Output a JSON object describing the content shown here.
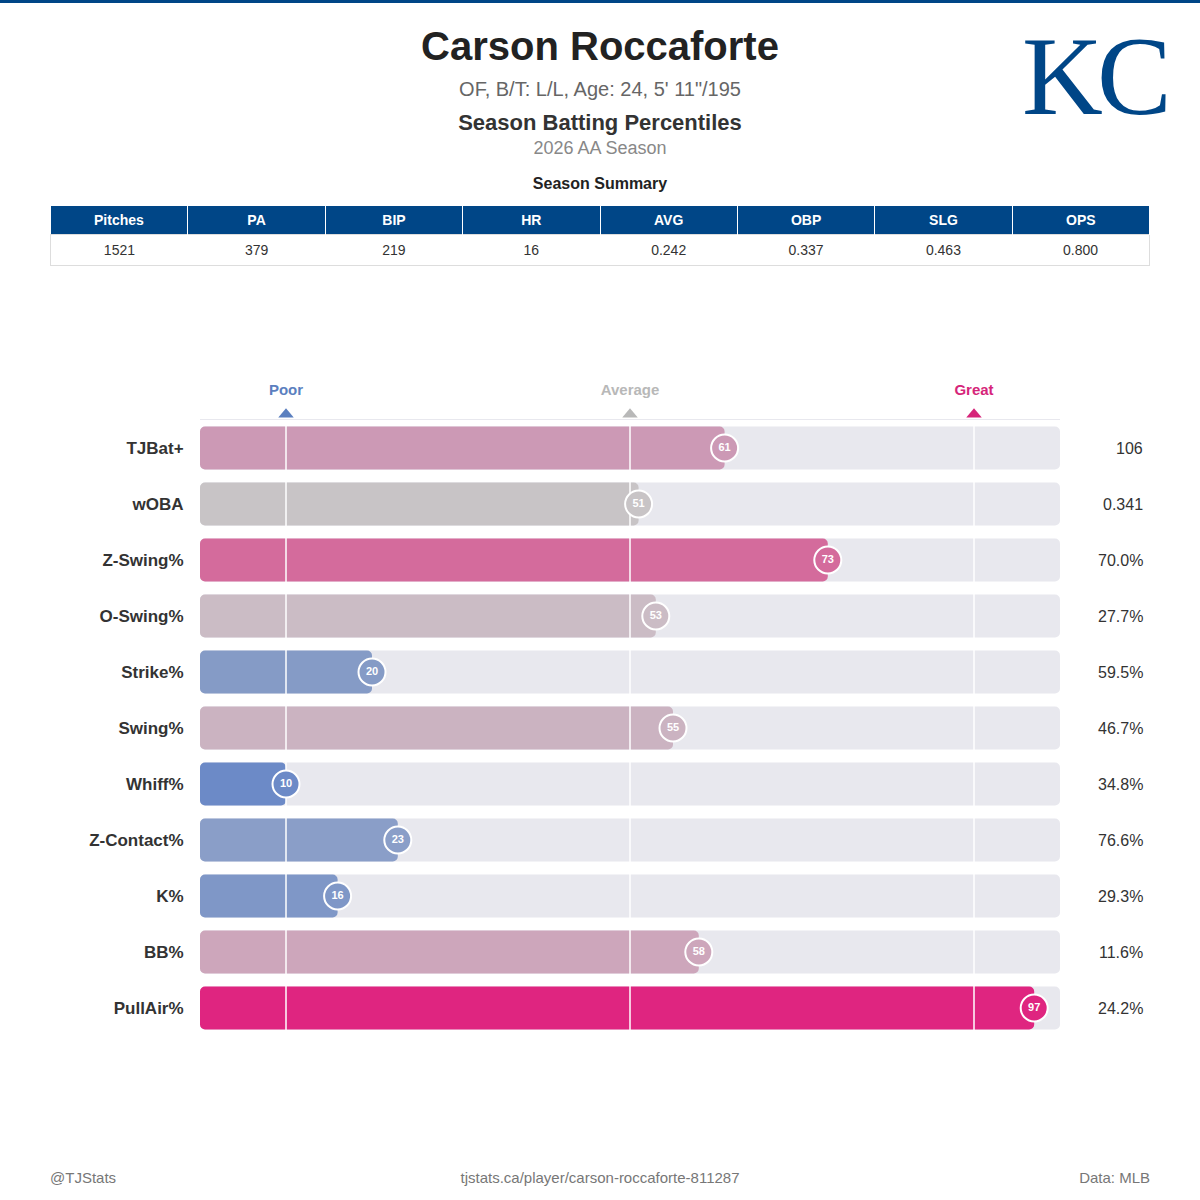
{
  "header": {
    "player": "Carson Roccaforte",
    "bio": "OF, B/T: L/L, Age: 24, 5' 11\"/195",
    "title": "Season Batting Percentiles",
    "season": "2026 AA Season",
    "team_logo": "KC"
  },
  "summary": {
    "title": "Season Summary",
    "columns": [
      "Pitches",
      "PA",
      "BIP",
      "HR",
      "AVG",
      "OBP",
      "SLG",
      "OPS"
    ],
    "rows": [
      [
        "1521",
        "379",
        "219",
        "16",
        "0.242",
        "0.337",
        "0.463",
        "0.800"
      ]
    ]
  },
  "chart_data": {
    "type": "bar",
    "orientation": "horizontal",
    "categories": [
      "TJBat+",
      "wOBA",
      "Z-Swing%",
      "O-Swing%",
      "Strike%",
      "Swing%",
      "Whiff%",
      "Z-Contact%",
      "K%",
      "BB%",
      "PullAir%"
    ],
    "values": [
      61,
      51,
      73,
      53,
      20,
      55,
      10,
      23,
      16,
      58,
      97
    ],
    "colors": [
      "#cc99b5",
      "#c8c4c6",
      "#d46b9c",
      "#cbbcc5",
      "#859bc6",
      "#cbb3c1",
      "#6c8ac7",
      "#8a9ec8",
      "#7f97c7",
      "#cda6bb",
      "#df2580"
    ],
    "stat_labels": [
      "106",
      "0.341",
      "70.0%",
      "27.7%",
      "59.5%",
      "46.7%",
      "34.8%",
      "76.6%",
      "29.3%",
      "11.6%",
      "24.2%"
    ],
    "xlim": [
      0,
      100
    ],
    "xticks": [
      {
        "value": 10,
        "label": "Poor"
      },
      {
        "value": 50,
        "label": "Average"
      },
      {
        "value": 90,
        "label": "Great"
      }
    ],
    "grid": true,
    "data_labels": true
  },
  "footer": {
    "left": "@TJStats",
    "center": "tjstats.ca/player/carson-roccaforte-811287",
    "right": "Data: MLB"
  }
}
